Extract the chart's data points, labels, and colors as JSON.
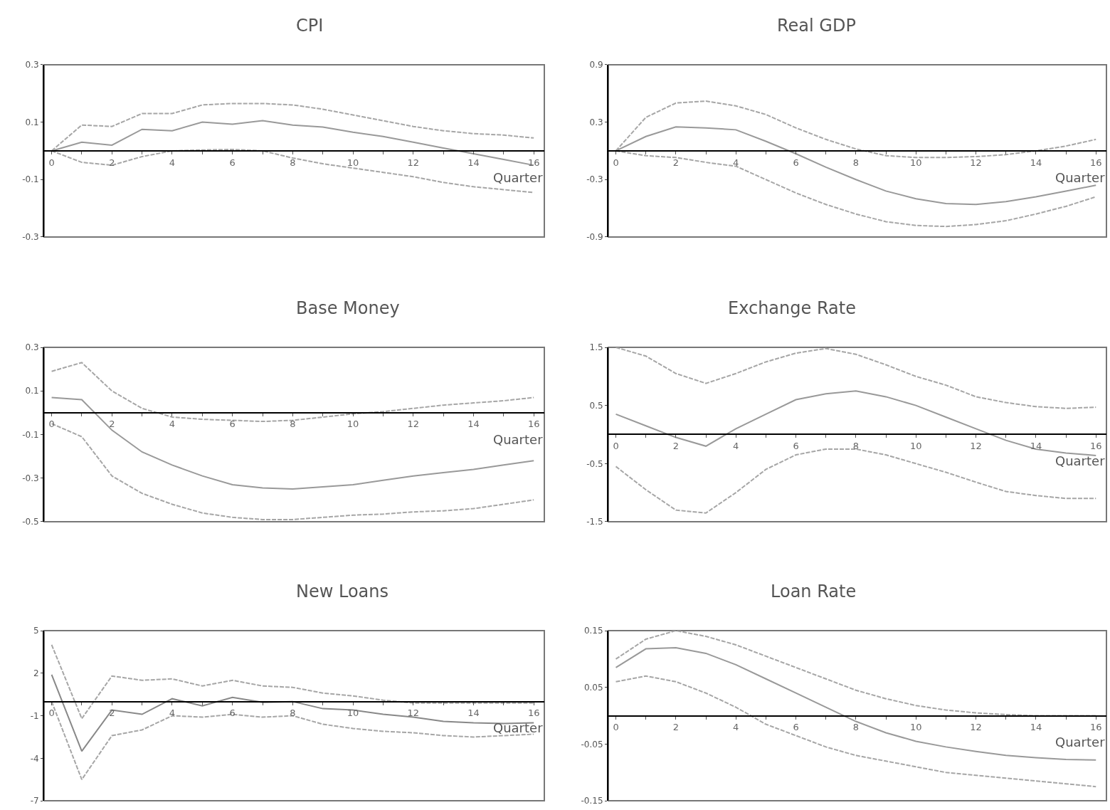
{
  "chart_data": [
    {
      "type": "line",
      "title": "CPI",
      "xlabel": "Quarter",
      "x": [
        0,
        1,
        2,
        3,
        4,
        5,
        6,
        7,
        8,
        9,
        10,
        11,
        12,
        13,
        14,
        15,
        16
      ],
      "xlim": [
        -0.25,
        16.35
      ],
      "xticks": [
        0,
        {
          "value": 1,
          "label": null
        },
        2,
        {
          "value": 3,
          "label": null
        },
        4,
        {
          "value": 5,
          "label": null
        },
        6,
        {
          "value": 7,
          "label": null
        },
        8,
        {
          "value": 9,
          "label": null
        },
        10,
        {
          "value": 11,
          "label": null
        },
        12,
        {
          "value": 13,
          "label": null
        },
        14,
        {
          "value": 15,
          "label": null
        },
        16
      ],
      "ylim": [
        -0.3,
        0.3
      ],
      "yticks": [
        -0.3,
        -0.1,
        0.1,
        0.3
      ],
      "grid": false,
      "series": [
        {
          "color": "#999999",
          "line_style": "solid",
          "values": [
            0,
            0.03,
            0.02,
            0.075,
            0.07,
            0.1,
            0.093,
            0.105,
            0.09,
            0.083,
            0.065,
            0.05,
            0.03,
            0.01,
            -0.01,
            -0.03,
            -0.05
          ]
        },
        {
          "color": "#a6a6a6",
          "line_style": "dashed",
          "values": [
            0,
            0.09,
            0.085,
            0.13,
            0.13,
            0.16,
            0.165,
            0.165,
            0.16,
            0.145,
            0.125,
            0.105,
            0.085,
            0.07,
            0.06,
            0.055,
            0.045
          ]
        },
        {
          "color": "#a6a6a6",
          "line_style": "dashed",
          "values": [
            0,
            -0.04,
            -0.05,
            -0.02,
            0,
            0.003,
            0.005,
            0,
            -0.025,
            -0.045,
            -0.06,
            -0.075,
            -0.09,
            -0.11,
            -0.125,
            -0.135,
            -0.145
          ]
        }
      ]
    },
    {
      "type": "line",
      "title": "Real GDP",
      "xlabel": "Quarter",
      "x": [
        0,
        1,
        2,
        3,
        4,
        5,
        6,
        7,
        8,
        9,
        10,
        11,
        12,
        13,
        14,
        15,
        16
      ],
      "xlim": [
        -0.25,
        16.35
      ],
      "xticks": [
        0,
        {
          "value": 1,
          "label": null
        },
        2,
        {
          "value": 3,
          "label": null
        },
        4,
        {
          "value": 5,
          "label": null
        },
        6,
        {
          "value": 7,
          "label": null
        },
        8,
        {
          "value": 9,
          "label": null
        },
        10,
        {
          "value": 11,
          "label": null
        },
        12,
        {
          "value": 13,
          "label": null
        },
        14,
        {
          "value": 15,
          "label": null
        },
        16
      ],
      "ylim": [
        -0.9,
        0.9
      ],
      "yticks": [
        -0.9,
        -0.3,
        0.3,
        0.9
      ],
      "grid": false,
      "series": [
        {
          "color": "#999999",
          "line_style": "solid",
          "values": [
            0,
            0.15,
            0.25,
            0.24,
            0.22,
            0.1,
            -0.03,
            -0.17,
            -0.3,
            -0.42,
            -0.5,
            -0.55,
            -0.56,
            -0.53,
            -0.48,
            -0.42,
            -0.36
          ]
        },
        {
          "color": "#a6a6a6",
          "line_style": "dashed",
          "values": [
            0,
            0.35,
            0.5,
            0.52,
            0.47,
            0.38,
            0.24,
            0.12,
            0.02,
            -0.05,
            -0.07,
            -0.07,
            -0.06,
            -0.04,
            0,
            0.05,
            0.12
          ]
        },
        {
          "color": "#a6a6a6",
          "line_style": "dashed",
          "values": [
            0,
            -0.05,
            -0.07,
            -0.12,
            -0.16,
            -0.3,
            -0.44,
            -0.56,
            -0.66,
            -0.74,
            -0.78,
            -0.79,
            -0.77,
            -0.73,
            -0.66,
            -0.58,
            -0.48
          ]
        }
      ]
    },
    {
      "type": "line",
      "title": "Base Money",
      "xlabel": "Quarter",
      "x": [
        0,
        1,
        2,
        3,
        4,
        5,
        6,
        7,
        8,
        9,
        10,
        11,
        12,
        13,
        14,
        15,
        16
      ],
      "xlim": [
        -0.25,
        16.35
      ],
      "xticks": [
        0,
        {
          "value": 1,
          "label": null
        },
        2,
        {
          "value": 3,
          "label": null
        },
        4,
        {
          "value": 5,
          "label": null
        },
        6,
        {
          "value": 7,
          "label": null
        },
        8,
        {
          "value": 9,
          "label": null
        },
        10,
        {
          "value": 11,
          "label": null
        },
        12,
        {
          "value": 13,
          "label": null
        },
        14,
        {
          "value": 15,
          "label": null
        },
        16
      ],
      "ylim": [
        -0.5,
        0.3
      ],
      "yticks": [
        -0.5,
        -0.3,
        -0.1,
        0.1,
        0.3
      ],
      "grid": false,
      "series": [
        {
          "color": "#999999",
          "line_style": "solid",
          "values": [
            0.07,
            0.06,
            -0.08,
            -0.18,
            -0.24,
            -0.29,
            -0.33,
            -0.345,
            -0.35,
            -0.34,
            -0.33,
            -0.31,
            -0.29,
            -0.275,
            -0.26,
            -0.24,
            -0.22
          ]
        },
        {
          "color": "#a6a6a6",
          "line_style": "dashed",
          "values": [
            0.19,
            0.23,
            0.1,
            0.02,
            -0.02,
            -0.03,
            -0.035,
            -0.04,
            -0.035,
            -0.02,
            -0.005,
            0.005,
            0.02,
            0.035,
            0.045,
            0.055,
            0.07
          ]
        },
        {
          "color": "#a6a6a6",
          "line_style": "dashed",
          "values": [
            -0.05,
            -0.11,
            -0.29,
            -0.37,
            -0.42,
            -0.46,
            -0.48,
            -0.49,
            -0.49,
            -0.48,
            -0.47,
            -0.465,
            -0.455,
            -0.45,
            -0.44,
            -0.42,
            -0.4
          ]
        }
      ]
    },
    {
      "type": "line",
      "title": "Exchange Rate",
      "xlabel": "Quarter",
      "x": [
        0,
        1,
        2,
        3,
        4,
        5,
        6,
        7,
        8,
        9,
        10,
        11,
        12,
        13,
        14,
        15,
        16
      ],
      "xlim": [
        -0.25,
        16.35
      ],
      "xticks": [
        0,
        {
          "value": 1,
          "label": null
        },
        2,
        {
          "value": 3,
          "label": null
        },
        4,
        {
          "value": 5,
          "label": null
        },
        6,
        {
          "value": 7,
          "label": null
        },
        8,
        {
          "value": 9,
          "label": null
        },
        10,
        {
          "value": 11,
          "label": null
        },
        12,
        {
          "value": 13,
          "label": null
        },
        14,
        {
          "value": 15,
          "label": null
        },
        16
      ],
      "ylim": [
        -1.5,
        1.5
      ],
      "yticks": [
        -1.5,
        -0.5,
        0.5,
        1.5
      ],
      "grid": false,
      "series": [
        {
          "color": "#999999",
          "line_style": "solid",
          "values": [
            0.35,
            0.15,
            -0.05,
            -0.2,
            0.1,
            0.35,
            0.6,
            0.7,
            0.75,
            0.65,
            0.5,
            0.3,
            0.1,
            -0.1,
            -0.25,
            -0.32,
            -0.36
          ]
        },
        {
          "color": "#a6a6a6",
          "line_style": "dashed",
          "values": [
            1.5,
            1.35,
            1.05,
            0.88,
            1.05,
            1.25,
            1.4,
            1.48,
            1.38,
            1.2,
            1.0,
            0.85,
            0.65,
            0.55,
            0.48,
            0.45,
            0.47
          ]
        },
        {
          "color": "#a6a6a6",
          "line_style": "dashed",
          "values": [
            -0.55,
            -0.95,
            -1.3,
            -1.35,
            -1.0,
            -0.6,
            -0.35,
            -0.25,
            -0.25,
            -0.35,
            -0.5,
            -0.65,
            -0.82,
            -0.98,
            -1.05,
            -1.1,
            -1.1
          ]
        }
      ]
    },
    {
      "type": "line",
      "title": "New Loans",
      "xlabel": "Quarter",
      "x": [
        0,
        1,
        2,
        3,
        4,
        5,
        6,
        7,
        8,
        9,
        10,
        11,
        12,
        13,
        14,
        15,
        16
      ],
      "xlim": [
        -0.25,
        16.35
      ],
      "xticks": [
        0,
        {
          "value": 1,
          "label": null
        },
        2,
        {
          "value": 3,
          "label": null
        },
        4,
        {
          "value": 5,
          "label": null
        },
        6,
        {
          "value": 7,
          "label": null
        },
        8,
        {
          "value": 9,
          "label": null
        },
        10,
        {
          "value": 11,
          "label": null
        },
        12,
        {
          "value": 13,
          "label": null
        },
        14,
        {
          "value": 15,
          "label": null
        },
        16
      ],
      "ylim": [
        -7,
        5
      ],
      "yticks": [
        -7,
        -4,
        -1,
        2,
        5
      ],
      "grid": false,
      "series": [
        {
          "color": "#888888",
          "line_style": "solid",
          "values": [
            1.9,
            -3.5,
            -0.6,
            -0.9,
            0.2,
            -0.3,
            0.3,
            -0.05,
            0,
            -0.5,
            -0.6,
            -0.9,
            -1.1,
            -1.4,
            -1.5,
            -1.55,
            -1.5
          ]
        },
        {
          "color": "#a6a6a6",
          "line_style": "dashed",
          "values": [
            4.0,
            -1.2,
            1.8,
            1.5,
            1.6,
            1.1,
            1.5,
            1.1,
            1.0,
            0.6,
            0.4,
            0.1,
            -0.1,
            -0.1,
            -0.1,
            -0.1,
            -0.1
          ]
        },
        {
          "color": "#a6a6a6",
          "line_style": "dashed",
          "values": [
            0,
            -5.5,
            -2.4,
            -2.0,
            -1.0,
            -1.1,
            -0.9,
            -1.1,
            -1.0,
            -1.6,
            -1.9,
            -2.1,
            -2.2,
            -2.4,
            -2.5,
            -2.4,
            -2.3
          ]
        }
      ]
    },
    {
      "type": "line",
      "title": "Loan Rate",
      "xlabel": "Quarter",
      "x": [
        0,
        1,
        2,
        3,
        4,
        5,
        6,
        7,
        8,
        9,
        10,
        11,
        12,
        13,
        14,
        15,
        16
      ],
      "xlim": [
        -0.25,
        16.35
      ],
      "xticks": [
        0,
        {
          "value": 1,
          "label": null
        },
        2,
        {
          "value": 3,
          "label": null
        },
        4,
        {
          "value": 5,
          "label": null
        },
        6,
        {
          "value": 7,
          "label": null
        },
        8,
        {
          "value": 9,
          "label": null
        },
        10,
        {
          "value": 11,
          "label": null
        },
        12,
        {
          "value": 13,
          "label": null
        },
        14,
        {
          "value": 15,
          "label": null
        },
        16
      ],
      "ylim": [
        -0.15,
        0.15
      ],
      "yticks": [
        -0.15,
        -0.05,
        0.05,
        0.15
      ],
      "grid": false,
      "series": [
        {
          "color": "#999999",
          "line_style": "solid",
          "values": [
            0.085,
            0.118,
            0.12,
            0.11,
            0.09,
            0.065,
            0.04,
            0.015,
            -0.01,
            -0.03,
            -0.045,
            -0.055,
            -0.063,
            -0.07,
            -0.074,
            -0.077,
            -0.078
          ]
        },
        {
          "color": "#a6a6a6",
          "line_style": "dashed",
          "values": [
            0.1,
            0.135,
            0.15,
            0.14,
            0.125,
            0.105,
            0.085,
            0.065,
            0.045,
            0.03,
            0.018,
            0.01,
            0.005,
            0.002,
            0,
            0,
            0
          ]
        },
        {
          "color": "#a6a6a6",
          "line_style": "dashed",
          "values": [
            0.06,
            0.07,
            0.06,
            0.04,
            0.015,
            -0.015,
            -0.035,
            -0.055,
            -0.07,
            -0.08,
            -0.09,
            -0.1,
            -0.105,
            -0.11,
            -0.115,
            -0.12,
            -0.125
          ]
        }
      ]
    }
  ]
}
